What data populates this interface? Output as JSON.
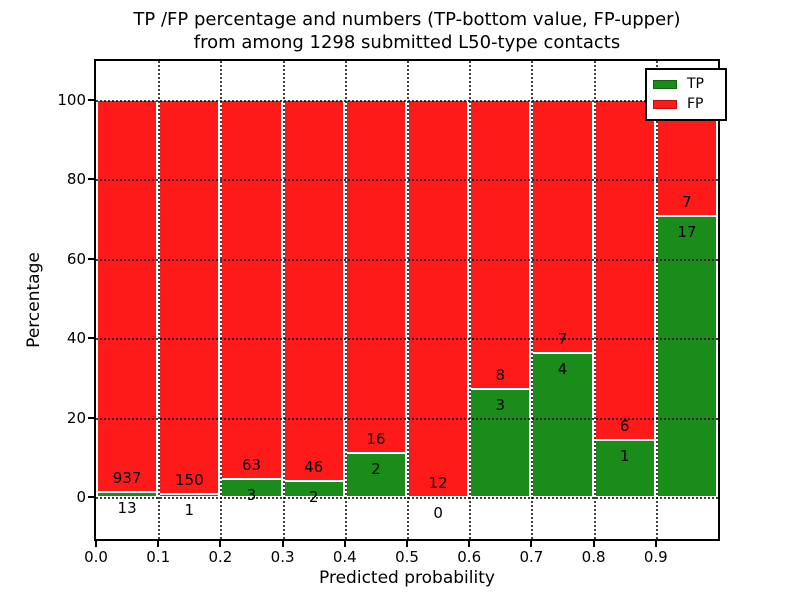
{
  "title": {
    "line1": "TP /FP percentage and numbers (TP-bottom value, FP-upper)",
    "line2": "from among 1298 submitted L50-type contacts"
  },
  "chart_data": {
    "type": "bar",
    "stacked": true,
    "normalized": "each bar scaled to 100%",
    "total_contacts": 1298,
    "bins": [
      "0.0-0.1",
      "0.1-0.2",
      "0.2-0.3",
      "0.3-0.4",
      "0.4-0.5",
      "0.5-0.6",
      "0.6-0.7",
      "0.7-0.8",
      "0.8-0.9",
      "0.9-1.0"
    ],
    "bin_start": [
      0.0,
      0.1,
      0.2,
      0.3,
      0.4,
      0.5,
      0.6,
      0.7,
      0.8,
      0.9
    ],
    "bin_width": 0.1,
    "series": [
      {
        "name": "TP",
        "color": "#1a8c1a",
        "counts": [
          13,
          1,
          3,
          2,
          2,
          0,
          3,
          4,
          1,
          17
        ]
      },
      {
        "name": "FP",
        "color": "#ff1a1a",
        "counts": [
          937,
          150,
          63,
          46,
          16,
          12,
          8,
          7,
          6,
          7
        ]
      }
    ],
    "annotation_note": "FP count printed above TP/FP boundary, TP count printed below it",
    "xlabel": "Predicted probability",
    "ylabel": "Percentage",
    "xlim": [
      0.0,
      1.0
    ],
    "ylim": [
      -10.55,
      109.8
    ],
    "yticks": [
      0,
      20,
      40,
      60,
      80,
      100
    ],
    "ytick_labels": [
      "0",
      "20",
      "40",
      "60",
      "80",
      "100"
    ],
    "xticks": [
      0.0,
      0.1,
      0.2,
      0.3,
      0.4,
      0.5,
      0.6,
      0.7,
      0.8,
      0.9
    ],
    "xtick_labels": [
      "0.0",
      "0.1",
      "0.2",
      "0.3",
      "0.4",
      "0.5",
      "0.6",
      "0.7",
      "0.8",
      "0.9"
    ],
    "grid": "dotted black, horizontal at yticks and vertical at xticks",
    "legend": {
      "position": "upper right",
      "entries": [
        {
          "label": "TP",
          "color": "#1a8c1a"
        },
        {
          "label": "FP",
          "color": "#ff1a1a"
        }
      ]
    }
  }
}
